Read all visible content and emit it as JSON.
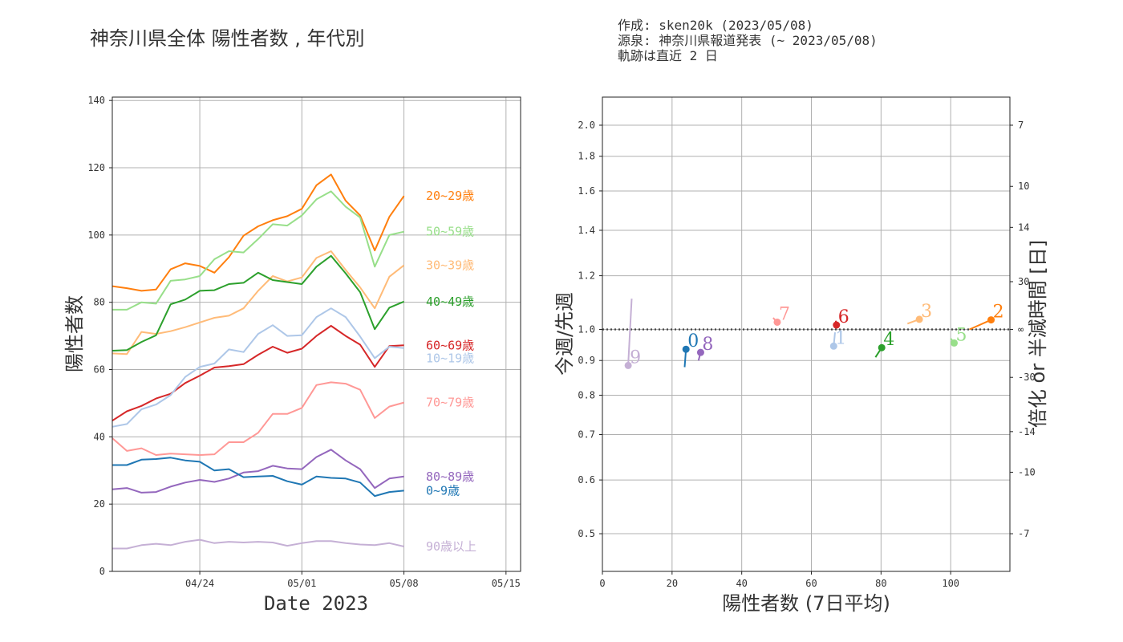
{
  "title": "神奈川県全体 陽性者数 , 年代別",
  "credits": [
    "作成: sken20k (2023/05/08)",
    "源泉: 神奈川県報道発表 (~ 2023/05/08)",
    "軌跡は直近 2 日"
  ],
  "chart_data": [
    {
      "type": "line",
      "xlabel": "Date 2023",
      "ylabel": "陽性者数",
      "ylim": [
        0,
        141
      ],
      "xlim": [
        "2023-04-18",
        "2023-05-16"
      ],
      "yticks": [
        0,
        20,
        40,
        60,
        80,
        100,
        120,
        140
      ],
      "xticks": [
        {
          "date": "2023-04-24",
          "label": "04/24"
        },
        {
          "date": "2023-05-01",
          "label": "05/01"
        },
        {
          "date": "2023-05-08",
          "label": "05/08"
        },
        {
          "date": "2023-05-15",
          "label": "05/15"
        }
      ],
      "grid": true,
      "dates": [
        "2023-04-18",
        "2023-04-19",
        "2023-04-20",
        "2023-04-21",
        "2023-04-22",
        "2023-04-23",
        "2023-04-24",
        "2023-04-25",
        "2023-04-26",
        "2023-04-27",
        "2023-04-28",
        "2023-04-29",
        "2023-04-30",
        "2023-05-01",
        "2023-05-02",
        "2023-05-03",
        "2023-05-04",
        "2023-05-05",
        "2023-05-06",
        "2023-05-07",
        "2023-05-08"
      ],
      "series": [
        {
          "name": "20~29歳",
          "color": "#ff7f0e",
          "values": [
            84.8,
            84.2,
            83.4,
            83.8,
            89.8,
            91.6,
            90.8,
            88.8,
            93.4,
            99.8,
            102.6,
            104.4,
            105.6,
            107.8,
            114.8,
            118.0,
            110.2,
            105.8,
            95.4,
            105.4,
            111.6
          ]
        },
        {
          "name": "50~59歳",
          "color": "#98df8a",
          "values": [
            77.8,
            77.8,
            80.0,
            79.6,
            86.4,
            86.8,
            87.8,
            92.8,
            95.2,
            94.8,
            98.8,
            103.2,
            102.8,
            105.8,
            110.6,
            113.0,
            108.4,
            105.2,
            90.6,
            100.0,
            101.0
          ]
        },
        {
          "name": "30~39歳",
          "color": "#ffbb78",
          "values": [
            64.8,
            64.6,
            71.2,
            70.6,
            71.4,
            72.6,
            74.0,
            75.4,
            76.0,
            78.2,
            83.4,
            87.8,
            86.2,
            87.4,
            93.2,
            95.2,
            89.6,
            84.4,
            78.2,
            87.6,
            91.0
          ]
        },
        {
          "name": "40~49歳",
          "color": "#2ca02c",
          "values": [
            65.6,
            65.8,
            68.2,
            70.2,
            79.4,
            80.8,
            83.4,
            83.6,
            85.4,
            85.8,
            88.8,
            86.6,
            86.0,
            85.4,
            90.6,
            93.8,
            88.6,
            83.0,
            72.0,
            78.4,
            80.2
          ]
        },
        {
          "name": "60~69歳",
          "color": "#d62728",
          "values": [
            44.8,
            47.6,
            49.2,
            51.4,
            52.8,
            56.0,
            58.2,
            60.6,
            61.0,
            61.6,
            64.4,
            66.8,
            65.0,
            66.2,
            70.0,
            73.0,
            70.0,
            67.4,
            60.8,
            67.0,
            67.2
          ]
        },
        {
          "name": "10~19歳",
          "color": "#aec7e8",
          "values": [
            43.0,
            43.8,
            48.2,
            49.6,
            52.4,
            57.8,
            60.8,
            61.8,
            66.0,
            65.2,
            70.6,
            73.2,
            70.0,
            70.2,
            75.6,
            78.2,
            75.6,
            69.8,
            63.4,
            66.8,
            66.4
          ]
        },
        {
          "name": "70~79歳",
          "color": "#ff9896",
          "values": [
            39.6,
            35.8,
            36.6,
            34.6,
            35.0,
            34.8,
            34.6,
            34.8,
            38.4,
            38.4,
            41.2,
            46.8,
            46.8,
            48.6,
            55.4,
            56.2,
            55.8,
            54.0,
            45.6,
            49.0,
            50.2
          ]
        },
        {
          "name": "80~89歳",
          "color": "#9467bd",
          "values": [
            24.4,
            24.8,
            23.4,
            23.6,
            25.2,
            26.4,
            27.2,
            26.6,
            27.6,
            29.4,
            29.8,
            31.4,
            30.6,
            30.4,
            34.0,
            36.2,
            33.0,
            30.4,
            24.8,
            27.6,
            28.2
          ]
        },
        {
          "name": "0~9歳",
          "color": "#1f77b4",
          "values": [
            31.6,
            31.6,
            33.2,
            33.4,
            33.8,
            33.0,
            32.6,
            30.0,
            30.4,
            28.0,
            28.2,
            28.4,
            26.8,
            25.8,
            28.2,
            27.8,
            27.6,
            26.4,
            22.4,
            23.6,
            24.0
          ]
        },
        {
          "name": "90歳以上",
          "color": "#c5b0d5",
          "values": [
            6.8,
            6.8,
            7.8,
            8.2,
            7.8,
            8.8,
            9.4,
            8.4,
            8.8,
            8.6,
            8.8,
            8.6,
            7.6,
            8.4,
            9.0,
            9.0,
            8.4,
            8.0,
            7.8,
            8.4,
            7.4
          ]
        }
      ]
    },
    {
      "type": "scatter",
      "xlabel": "陽性者数 (7日平均)",
      "ylabel": "今週/先週",
      "ylabel_right": "倍化 or 半減時間 [日]",
      "xlim": [
        0,
        117
      ],
      "ylim": [
        0.44,
        2.2
      ],
      "yscale": "log",
      "yticks": [
        0.5,
        0.6,
        0.7,
        0.8,
        0.9,
        1.0,
        1.2,
        1.4,
        1.6,
        1.8,
        2.0
      ],
      "ytick_labels": [
        "0.5",
        "0.6",
        "0.7",
        "0.8",
        "0.9",
        "1.0",
        "1.2",
        "1.4",
        "1.6",
        "1.8",
        "2.0"
      ],
      "xticks": [
        0,
        20,
        40,
        60,
        80,
        100
      ],
      "right_ticks": [
        {
          "value": 7,
          "ratio": 2.0
        },
        {
          "value": 10,
          "ratio": 1.625
        },
        {
          "value": 14,
          "ratio": 1.414
        },
        {
          "value": 30,
          "ratio": 1.176
        },
        {
          "value": "∞",
          "ratio": 1.0
        },
        {
          "value": -30,
          "ratio": 0.85
        },
        {
          "value": -14,
          "ratio": 0.707
        },
        {
          "value": -10,
          "ratio": 0.616
        },
        {
          "value": -7,
          "ratio": 0.5
        }
      ],
      "grid": true,
      "reference_line": 1.0,
      "points": [
        {
          "label": "0",
          "color": "#1f77b4",
          "x": 24.0,
          "y": 0.935,
          "trail": [
            [
              23.6,
              0.88
            ],
            [
              24.0,
              0.935
            ]
          ]
        },
        {
          "label": "1",
          "color": "#aec7e8",
          "x": 66.4,
          "y": 0.945,
          "trail": [
            [
              66.8,
              0.99
            ],
            [
              66.4,
              0.945
            ]
          ]
        },
        {
          "label": "2",
          "color": "#ff7f0e",
          "x": 111.6,
          "y": 1.033,
          "trail": [
            [
              105.4,
              1.0
            ],
            [
              111.6,
              1.033
            ]
          ]
        },
        {
          "label": "3",
          "color": "#ffbb78",
          "x": 91.0,
          "y": 1.035,
          "trail": [
            [
              87.6,
              1.02
            ],
            [
              91.0,
              1.035
            ]
          ]
        },
        {
          "label": "4",
          "color": "#2ca02c",
          "x": 80.2,
          "y": 0.94,
          "trail": [
            [
              78.4,
              0.91
            ],
            [
              80.2,
              0.94
            ]
          ]
        },
        {
          "label": "5",
          "color": "#98df8a",
          "x": 101.0,
          "y": 0.955,
          "trail": [
            [
              100.0,
              0.97
            ],
            [
              101.0,
              0.955
            ]
          ]
        },
        {
          "label": "6",
          "color": "#d62728",
          "x": 67.2,
          "y": 1.015,
          "trail": [
            [
              67.0,
              1.03
            ],
            [
              67.2,
              1.015
            ]
          ]
        },
        {
          "label": "7",
          "color": "#ff9896",
          "x": 50.2,
          "y": 1.025,
          "trail": [
            [
              49.0,
              1.04
            ],
            [
              50.2,
              1.025
            ]
          ]
        },
        {
          "label": "8",
          "color": "#9467bd",
          "x": 28.2,
          "y": 0.925,
          "trail": [
            [
              27.6,
              0.9
            ],
            [
              28.2,
              0.925
            ]
          ]
        },
        {
          "label": "9",
          "color": "#c5b0d5",
          "x": 7.4,
          "y": 0.885,
          "trail": [
            [
              8.4,
              1.11
            ],
            [
              7.4,
              0.885
            ]
          ]
        }
      ]
    }
  ]
}
